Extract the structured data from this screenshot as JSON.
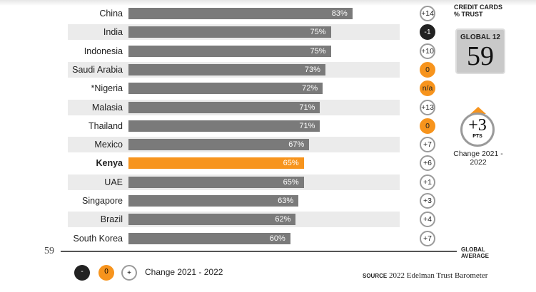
{
  "chart_data": {
    "type": "bar",
    "orientation": "horizontal",
    "categories": [
      "China",
      "India",
      "Indonesia",
      "Saudi Arabia",
      "*Nigeria",
      "Malasia",
      "Thailand",
      "Mexico",
      "Kenya",
      "UAE",
      "Singapore",
      "Brazil",
      "South Korea"
    ],
    "values": [
      83,
      75,
      75,
      73,
      72,
      71,
      71,
      67,
      65,
      65,
      63,
      62,
      60
    ],
    "value_labels": [
      "83%",
      "75%",
      "75%",
      "73%",
      "72%",
      "71%",
      "71%",
      "67%",
      "65%",
      "65%",
      "63%",
      "62%",
      "60%"
    ],
    "highlight": "Kenya",
    "changes": [
      "+14",
      "-1",
      "+10",
      "0",
      "n/a",
      "+13",
      "0",
      "+7",
      "+6",
      "+1",
      "+3",
      "+4",
      "+7"
    ],
    "reference_line": {
      "value": 59,
      "label": "59",
      "text": "GLOBAL AVERAGE"
    },
    "colors": {
      "bar": "#7a7a7a",
      "highlight": "#f7941d",
      "negative": "#222222",
      "zero": "#f7941d"
    }
  },
  "panel": {
    "title": "CREDIT CARDS % TRUST",
    "global_label": "GLOBAL 12",
    "global_value": "59",
    "change_value": "+3",
    "change_unit": "PTS",
    "change_caption": "Change 2021 - 2022"
  },
  "legend": {
    "neg": "-",
    "zero": "0",
    "pos": "+",
    "text": "Change 2021 - 2022"
  },
  "source": {
    "label": "SOURCE",
    "text": "2022 Edelman Trust Barometer"
  }
}
